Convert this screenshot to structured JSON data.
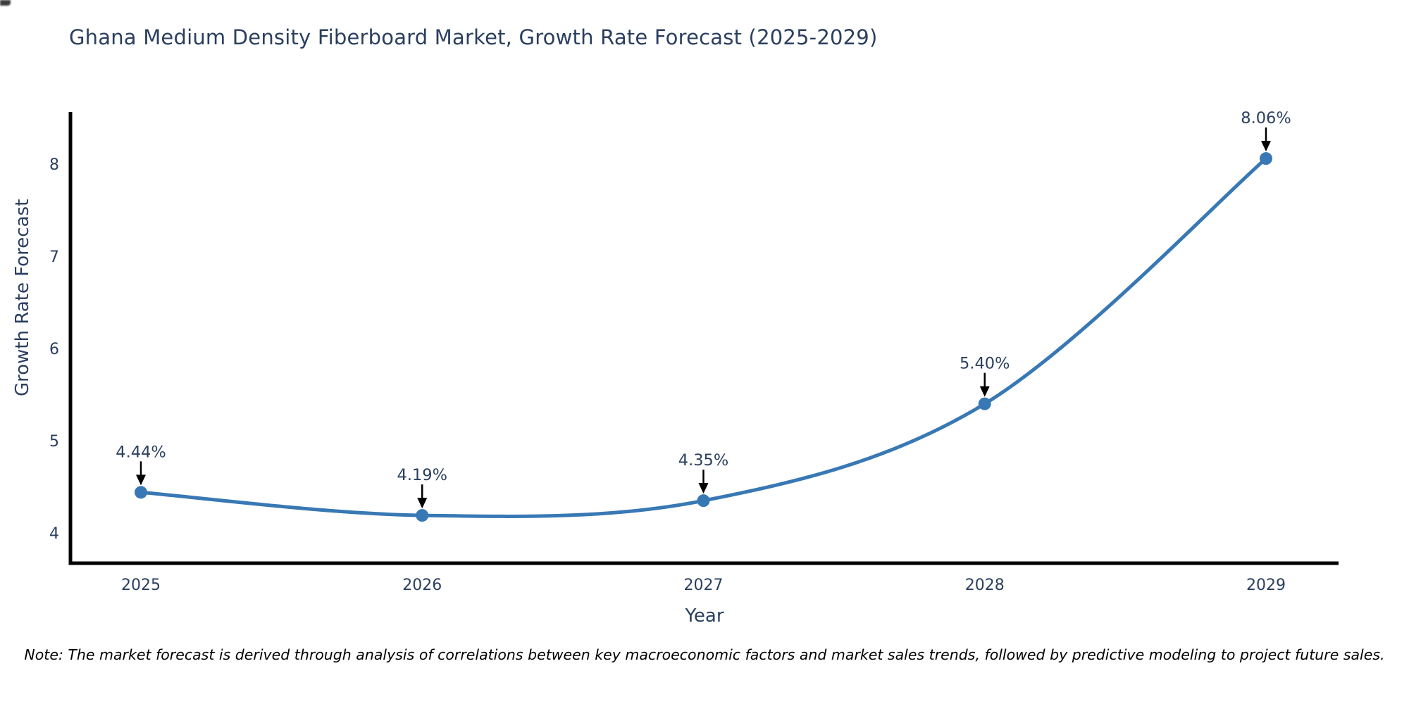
{
  "page": {
    "title": "Ghana Medium Density Fiberboard Market, Growth Rate Forecast (2025-2029)",
    "note": "Note: The market forecast is derived through analysis of correlations between key macroeconomic factors and market sales trends, followed by predictive modeling to project future sales."
  },
  "chart_data": {
    "type": "line",
    "title": "Ghana Medium Density Fiberboard Market, Growth Rate Forecast (2025-2029)",
    "xlabel": "Year",
    "ylabel": "Growth Rate Forecast",
    "x": [
      2025,
      2026,
      2027,
      2028,
      2029
    ],
    "series": [
      {
        "name": "Growth Rate Forecast",
        "values": [
          4.44,
          4.19,
          4.35,
          5.4,
          8.06
        ],
        "point_labels": [
          "4.44%",
          "4.19%",
          "4.35%",
          "5.40%",
          "8.06%"
        ]
      }
    ],
    "yticks": [
      4,
      5,
      6,
      7,
      8
    ],
    "ylim": [
      3.65,
      8.57
    ],
    "grid": false,
    "legend": false,
    "line_shape": "spline",
    "colors": {
      "line": "#3878b4",
      "marker": "#3878b4",
      "axis": "#000000",
      "tick_label": "#2a3f5f",
      "annotation_text": "#2a3f5f",
      "annotation_arrow": "#000000"
    }
  }
}
